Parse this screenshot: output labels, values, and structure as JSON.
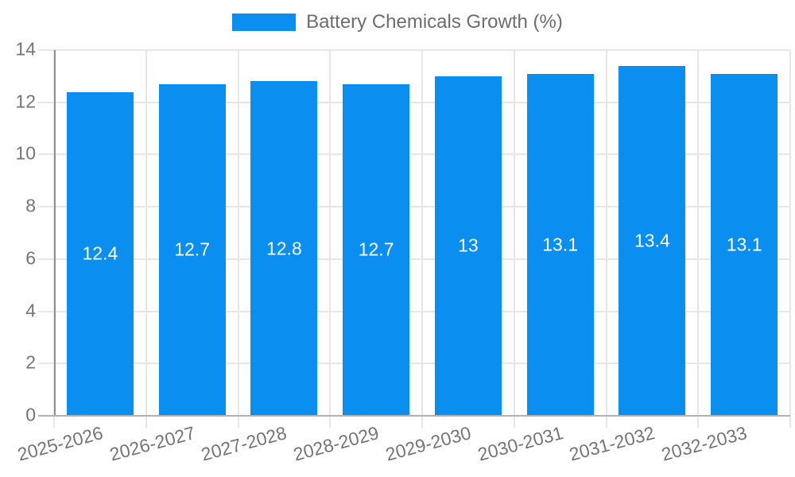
{
  "chart_data": {
    "type": "bar",
    "title": "Battery Chemicals Growth (%)",
    "categories": [
      "2025-2026",
      "2026-2027",
      "2027-2028",
      "2028-2029",
      "2029-2030",
      "2030-2031",
      "2031-2032",
      "2032-2033"
    ],
    "values": [
      12.4,
      12.7,
      12.8,
      12.7,
      13,
      13.1,
      13.4,
      13.1
    ],
    "value_labels": [
      "12.4",
      "12.7",
      "12.8",
      "12.7",
      "13",
      "13.1",
      "13.4",
      "13.1"
    ],
    "xlabel": "",
    "ylabel": "",
    "ylim": [
      0,
      14
    ],
    "yticks": [
      0,
      2,
      4,
      6,
      8,
      10,
      12,
      14
    ],
    "grid": true,
    "legend_position": "top-center",
    "colors": {
      "bar": "#0a8ff0",
      "value_label": "#ffffff",
      "axis_text": "#757575",
      "legend_text": "#6d6d6d",
      "gridline": "#e6e6e6",
      "y_axis_line": "#8f8f8f",
      "x_axis_line": "#b1b1b1",
      "background": "#ffffff"
    }
  }
}
